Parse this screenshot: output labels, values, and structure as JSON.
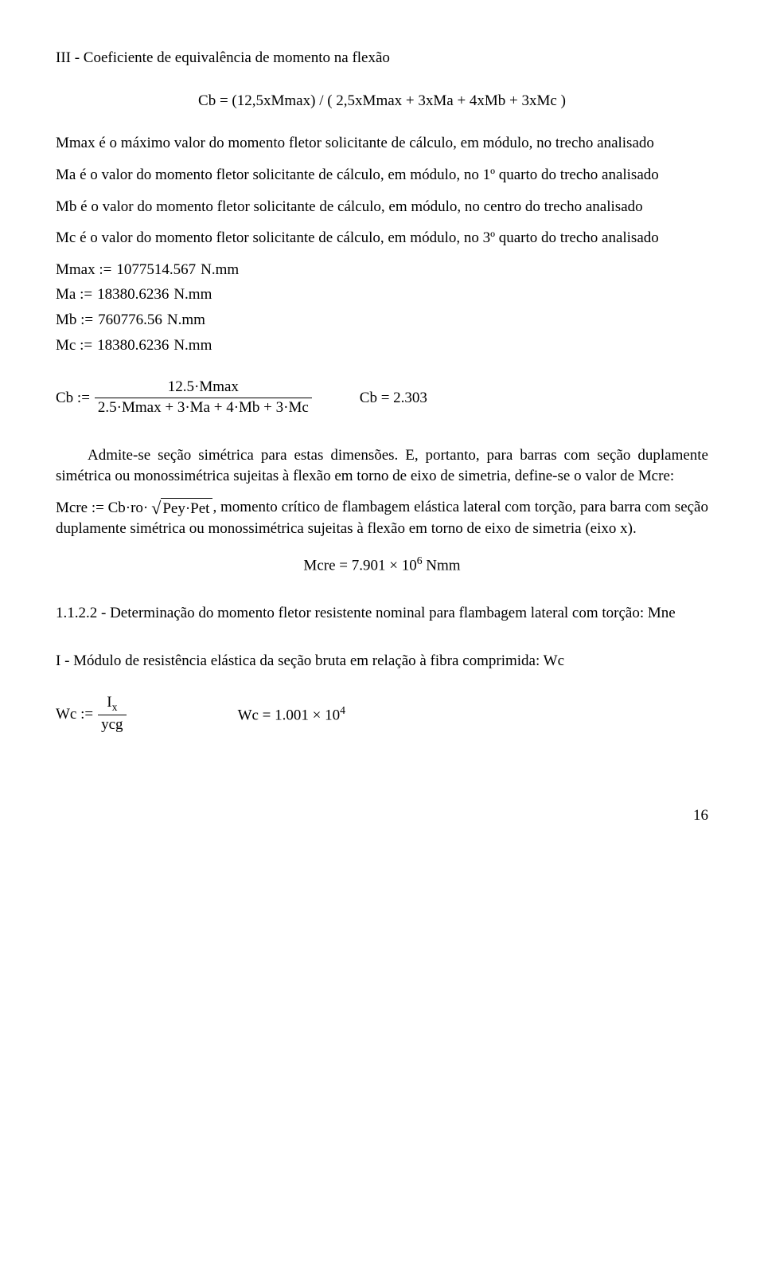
{
  "h_title": "III - Coeficiente de equivalência de momento na flexão",
  "formula_cb_def": "Cb = (12,5xMmax) / ( 2,5xMmax + 3xMa + 4xMb + 3xMc )",
  "p_mmax": "Mmax é o máximo valor do momento fletor solicitante de cálculo, em módulo, no trecho analisado",
  "p_ma": "Ma é o valor  do momento fletor solicitante de cálculo, em módulo, no 1º quarto do trecho analisado",
  "p_mb": "Mb é o valor  do momento fletor solicitante de cálculo, em módulo, no centro do trecho analisado",
  "p_mc": "Mc é o valor do momento fletor solicitante de cálculo, em módulo, no 3º quarto do trecho analisado",
  "assigns": {
    "mmax_lhs": "Mmax :=",
    "mmax_val": "1077514.567",
    "ma_lhs": "Ma :=",
    "ma_val": "18380.6236",
    "mb_lhs": "Mb :=",
    "mb_val": "760776.56",
    "mc_lhs": "Mc :=",
    "mc_val": "18380.6236",
    "unit": "N.mm"
  },
  "cb_calc": {
    "lhs": "Cb :=",
    "num": "12.5·Mmax",
    "den": "2.5·Mmax + 3·Ma + 4·Mb + 3·Mc",
    "result": "Cb = 2.303"
  },
  "p_admite": "Admite-se seção simétrica para estas dimensões. E, portanto, para barras com seção duplamente simétrica ou monossimétrica sujeitas à flexão em torno de eixo de simetria, define-se o valor de Mcre:",
  "mcre_eq": {
    "lhs": "Mcre := Cb·ro·",
    "radicand": "Pey·Pet"
  },
  "p_mcre_tail": ", momento crítico de flambagem elástica lateral com torção, para barra com seção duplamente simétrica ou monossimétrica sujeitas à flexão em torno de eixo de simetria (eixo x).",
  "mcre_result": {
    "prefix": "Mcre = 7.901 × 10",
    "exp": "6",
    "unit": "  Nmm"
  },
  "p_1122": "1.1.2.2 - Determinação do momento fletor resistente nominal para flambagem lateral com torção: Mne",
  "p_modulo": "I - Módulo de resistência elástica da seção bruta em relação à fibra comprimida: Wc",
  "wc": {
    "lhs": "Wc :=",
    "num_main": "I",
    "num_sub": "x",
    "den": "ycg",
    "result_prefix": "Wc = 1.001 × 10",
    "result_exp": "4"
  },
  "pagenum": "16"
}
